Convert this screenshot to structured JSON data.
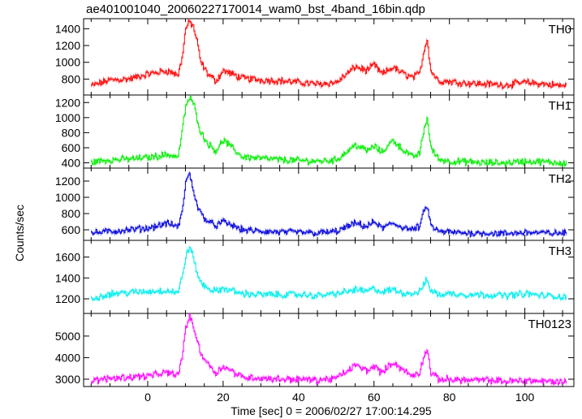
{
  "title": "ae401001040_20060227170014_wam0_bst_4band_16bin.qdp",
  "chart_data": {
    "type": "line",
    "xlabel": "Time [sec] 0 = 2006/02/27 17:00:14.295",
    "ylabel": "Counts/sec",
    "xlim": [
      -17,
      113
    ],
    "xticks": [
      0,
      20,
      40,
      60,
      80,
      100
    ],
    "panels": [
      {
        "name": "TH0",
        "color": "#ff0000",
        "ylim": [
          610,
          1520
        ],
        "yticks": [
          800,
          1000,
          1200,
          1400
        ],
        "x": [
          -15,
          -10,
          -5,
          0,
          5,
          8,
          9,
          10,
          11,
          12,
          13,
          14,
          16,
          18,
          20,
          25,
          30,
          35,
          40,
          45,
          50,
          53,
          55,
          58,
          60,
          62,
          65,
          67,
          70,
          72,
          73,
          74,
          75,
          77,
          80,
          85,
          90,
          95,
          100,
          105,
          110
        ],
        "y": [
          720,
          790,
          800,
          860,
          900,
          850,
          1050,
          1400,
          1480,
          1430,
          1250,
          1000,
          850,
          780,
          900,
          810,
          790,
          780,
          760,
          740,
          760,
          870,
          950,
          900,
          970,
          860,
          940,
          880,
          820,
          860,
          1100,
          1280,
          900,
          780,
          770,
          750,
          740,
          730,
          760,
          740,
          720
        ]
      },
      {
        "name": "TH1",
        "color": "#00ee00",
        "ylim": [
          330,
          1300
        ],
        "yticks": [
          400,
          600,
          800,
          1000,
          1200
        ],
        "x": [
          -15,
          -10,
          -5,
          0,
          5,
          8,
          9,
          10,
          11,
          12,
          13,
          14,
          16,
          18,
          20,
          25,
          30,
          35,
          40,
          45,
          50,
          53,
          55,
          58,
          60,
          62,
          65,
          67,
          70,
          72,
          73,
          74,
          75,
          77,
          80,
          85,
          90,
          95,
          100,
          105,
          110
        ],
        "y": [
          410,
          440,
          450,
          470,
          510,
          480,
          800,
          1150,
          1260,
          1200,
          1000,
          800,
          650,
          560,
          700,
          480,
          460,
          440,
          430,
          420,
          440,
          560,
          640,
          560,
          620,
          540,
          700,
          600,
          480,
          520,
          800,
          1000,
          600,
          450,
          420,
          410,
          400,
          400,
          420,
          410,
          400
        ]
      },
      {
        "name": "TH2",
        "color": "#0000dd",
        "ylim": [
          470,
          1360
        ],
        "yticks": [
          600,
          800,
          1000,
          1200
        ],
        "x": [
          -15,
          -10,
          -5,
          0,
          5,
          8,
          9,
          10,
          11,
          12,
          13,
          14,
          16,
          18,
          20,
          25,
          30,
          35,
          40,
          45,
          50,
          53,
          55,
          58,
          60,
          62,
          65,
          67,
          70,
          72,
          73,
          74,
          75,
          77,
          80,
          85,
          90,
          95,
          100,
          105,
          110
        ],
        "y": [
          560,
          580,
          600,
          620,
          680,
          640,
          800,
          1200,
          1280,
          1100,
          900,
          800,
          700,
          650,
          700,
          600,
          580,
          570,
          570,
          560,
          580,
          640,
          680,
          640,
          700,
          620,
          680,
          640,
          600,
          640,
          800,
          900,
          650,
          580,
          570,
          560,
          560,
          550,
          570,
          560,
          560
        ]
      },
      {
        "name": "TH3",
        "color": "#00eeee",
        "ylim": [
          1060,
          1760
        ],
        "yticks": [
          1200,
          1400,
          1600
        ],
        "x": [
          -15,
          -10,
          -5,
          0,
          5,
          8,
          9,
          10,
          11,
          12,
          13,
          14,
          16,
          18,
          20,
          25,
          30,
          35,
          40,
          45,
          50,
          53,
          55,
          58,
          60,
          62,
          65,
          67,
          70,
          72,
          73,
          74,
          75,
          77,
          80,
          85,
          90,
          95,
          100,
          105,
          110
        ],
        "y": [
          1200,
          1250,
          1260,
          1270,
          1280,
          1260,
          1400,
          1600,
          1700,
          1600,
          1450,
          1350,
          1300,
          1270,
          1300,
          1250,
          1240,
          1240,
          1240,
          1230,
          1250,
          1270,
          1290,
          1270,
          1300,
          1260,
          1290,
          1260,
          1250,
          1270,
          1330,
          1380,
          1280,
          1240,
          1250,
          1240,
          1240,
          1230,
          1250,
          1230,
          1220
        ]
      },
      {
        "name": "TH0123",
        "color": "#ff00ff",
        "ylim": [
          2660,
          6050
        ],
        "yticks": [
          3000,
          4000,
          5000
        ],
        "x": [
          -15,
          -10,
          -5,
          0,
          5,
          8,
          9,
          10,
          11,
          12,
          13,
          14,
          16,
          18,
          20,
          25,
          30,
          35,
          40,
          45,
          50,
          53,
          55,
          58,
          60,
          62,
          65,
          67,
          70,
          72,
          73,
          74,
          75,
          77,
          80,
          85,
          90,
          95,
          100,
          105,
          110
        ],
        "y": [
          2900,
          3050,
          3100,
          3150,
          3300,
          3200,
          4000,
          5400,
          5900,
          5500,
          4800,
          4200,
          3700,
          3300,
          3600,
          3100,
          3050,
          3000,
          3000,
          2950,
          3050,
          3400,
          3650,
          3400,
          3600,
          3300,
          3800,
          3500,
          3150,
          3300,
          4000,
          4400,
          3300,
          3000,
          3000,
          2950,
          2950,
          2900,
          2950,
          2900,
          2880
        ]
      }
    ]
  }
}
